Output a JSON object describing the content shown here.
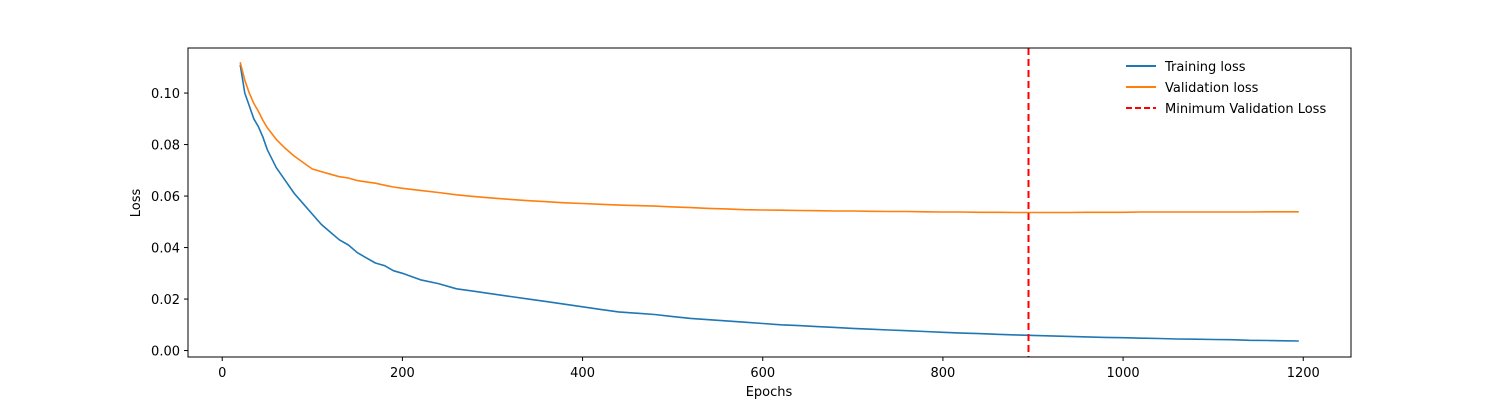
{
  "chart_data": {
    "type": "line",
    "title": "",
    "xlabel": "Epochs",
    "ylabel": "Loss",
    "xlim": [
      -38,
      1253
    ],
    "ylim": [
      -0.0025,
      0.1175
    ],
    "x_ticks": [
      0,
      200,
      400,
      600,
      800,
      1000,
      1200
    ],
    "x_tick_labels": [
      "0",
      "200",
      "400",
      "600",
      "800",
      "1000",
      "1200"
    ],
    "y_ticks": [
      0.0,
      0.02,
      0.04,
      0.06,
      0.08,
      0.1
    ],
    "y_tick_labels": [
      "0.00",
      "0.02",
      "0.04",
      "0.06",
      "0.08",
      "0.10"
    ],
    "grid": false,
    "legend_position": "upper right",
    "series": [
      {
        "name": "Training loss",
        "color": "#1f77b4",
        "style": "solid",
        "x": [
          20,
          25,
          30,
          35,
          40,
          45,
          50,
          60,
          70,
          80,
          90,
          100,
          110,
          120,
          130,
          140,
          150,
          160,
          170,
          180,
          190,
          200,
          220,
          240,
          260,
          280,
          300,
          320,
          340,
          360,
          380,
          400,
          420,
          440,
          460,
          480,
          500,
          520,
          540,
          560,
          580,
          600,
          620,
          640,
          660,
          680,
          700,
          720,
          740,
          760,
          780,
          800,
          820,
          840,
          860,
          880,
          900,
          920,
          940,
          960,
          980,
          1000,
          1020,
          1040,
          1060,
          1080,
          1100,
          1120,
          1140,
          1160,
          1180,
          1195
        ],
        "y": [
          0.111,
          0.1,
          0.095,
          0.09,
          0.087,
          0.083,
          0.078,
          0.071,
          0.066,
          0.061,
          0.057,
          0.053,
          0.049,
          0.046,
          0.043,
          0.041,
          0.038,
          0.036,
          0.034,
          0.033,
          0.031,
          0.03,
          0.0275,
          0.026,
          0.024,
          0.023,
          0.022,
          0.021,
          0.02,
          0.019,
          0.018,
          0.017,
          0.016,
          0.015,
          0.0145,
          0.014,
          0.0132,
          0.0125,
          0.012,
          0.0115,
          0.011,
          0.0105,
          0.01,
          0.0097,
          0.0093,
          0.009,
          0.0086,
          0.0083,
          0.008,
          0.0077,
          0.0074,
          0.0071,
          0.0068,
          0.0066,
          0.0063,
          0.0061,
          0.0059,
          0.0057,
          0.0055,
          0.0053,
          0.0051,
          0.005,
          0.0048,
          0.0047,
          0.0045,
          0.0044,
          0.0043,
          0.0042,
          0.004,
          0.0039,
          0.0038,
          0.0037
        ]
      },
      {
        "name": "Validation loss",
        "color": "#ff7f0e",
        "style": "solid",
        "x": [
          20,
          25,
          30,
          35,
          40,
          45,
          50,
          60,
          70,
          80,
          90,
          100,
          110,
          120,
          130,
          140,
          150,
          160,
          170,
          180,
          190,
          200,
          220,
          240,
          260,
          280,
          300,
          320,
          340,
          360,
          380,
          400,
          420,
          440,
          460,
          480,
          500,
          520,
          540,
          560,
          580,
          600,
          620,
          640,
          660,
          680,
          700,
          720,
          740,
          760,
          780,
          800,
          820,
          840,
          860,
          880,
          895,
          920,
          940,
          960,
          980,
          1000,
          1020,
          1040,
          1060,
          1080,
          1100,
          1120,
          1140,
          1160,
          1180,
          1195
        ],
        "y": [
          0.112,
          0.105,
          0.1,
          0.096,
          0.093,
          0.0895,
          0.0865,
          0.082,
          0.0785,
          0.0755,
          0.073,
          0.0705,
          0.0695,
          0.0685,
          0.0675,
          0.067,
          0.066,
          0.0655,
          0.065,
          0.0642,
          0.0635,
          0.063,
          0.0622,
          0.0614,
          0.0605,
          0.0598,
          0.0592,
          0.0587,
          0.0582,
          0.0578,
          0.0574,
          0.0571,
          0.0568,
          0.0565,
          0.0563,
          0.0561,
          0.0558,
          0.0555,
          0.0552,
          0.055,
          0.0547,
          0.0546,
          0.0545,
          0.0544,
          0.0543,
          0.0542,
          0.0542,
          0.0541,
          0.054,
          0.054,
          0.0539,
          0.0538,
          0.0538,
          0.0537,
          0.0537,
          0.0536,
          0.0536,
          0.0536,
          0.0536,
          0.0537,
          0.0537,
          0.0537,
          0.0538,
          0.0538,
          0.0538,
          0.0538,
          0.0538,
          0.0538,
          0.0538,
          0.0539,
          0.0539,
          0.0539
        ]
      }
    ],
    "vlines": [
      {
        "name": "Minimum Validation Loss",
        "x": 895,
        "color": "#ff0000",
        "style": "dashed"
      }
    ]
  }
}
